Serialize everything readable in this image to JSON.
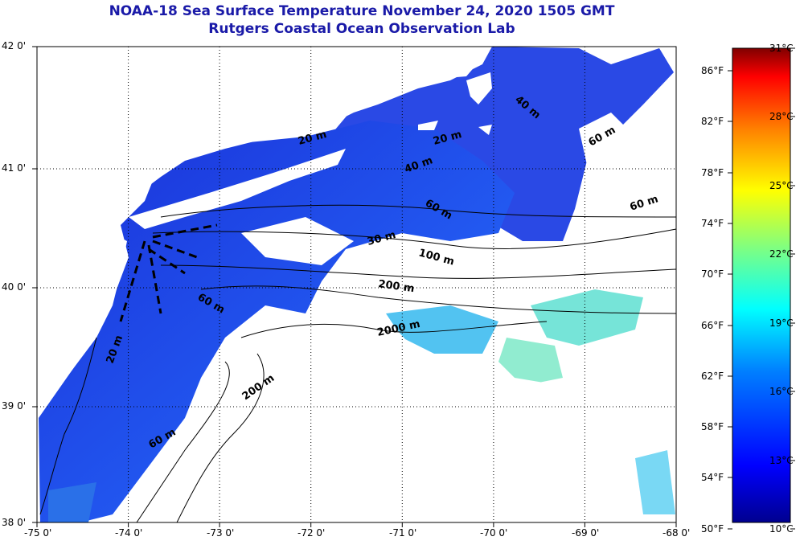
{
  "title": "NOAA-18 Sea Surface Temperature November 24, 2020 1505 GMT",
  "subtitle": "Rutgers Coastal Ocean Observation Lab",
  "axes": {
    "x_ticks": [
      "-75 0'",
      "-74 0'",
      "-73 0'",
      "-72 0'",
      "-71 0'",
      "-70 0'",
      "-69 0'",
      "-68 0'"
    ],
    "y_ticks": [
      "42 0'",
      "41 0'",
      "40 0'",
      "39 0'",
      "38 0'"
    ]
  },
  "contour_labels": [
    "20 m",
    "40 m",
    "40 m",
    "60 m",
    "30 m",
    "100 m",
    "200 m",
    "2000 m",
    "200 m",
    "60 m",
    "20 m",
    "60 m",
    "60 m",
    "20 m",
    "60 m"
  ],
  "colorbar": {
    "fahrenheit": [
      "86°F",
      "82°F",
      "78°F",
      "74°F",
      "70°F",
      "66°F",
      "62°F",
      "58°F",
      "54°F",
      "50°F"
    ],
    "celsius": [
      "31°C",
      "28°C",
      "25°C",
      "22°C",
      "19°C",
      "16°C",
      "13°C",
      "10°C"
    ],
    "min_c": 10,
    "max_c": 31
  },
  "colors": {
    "title": "#1a1aa8",
    "land": "#ffffff",
    "water_cold": "#1e3ce6",
    "water_warm": "#3ee6e0"
  }
}
